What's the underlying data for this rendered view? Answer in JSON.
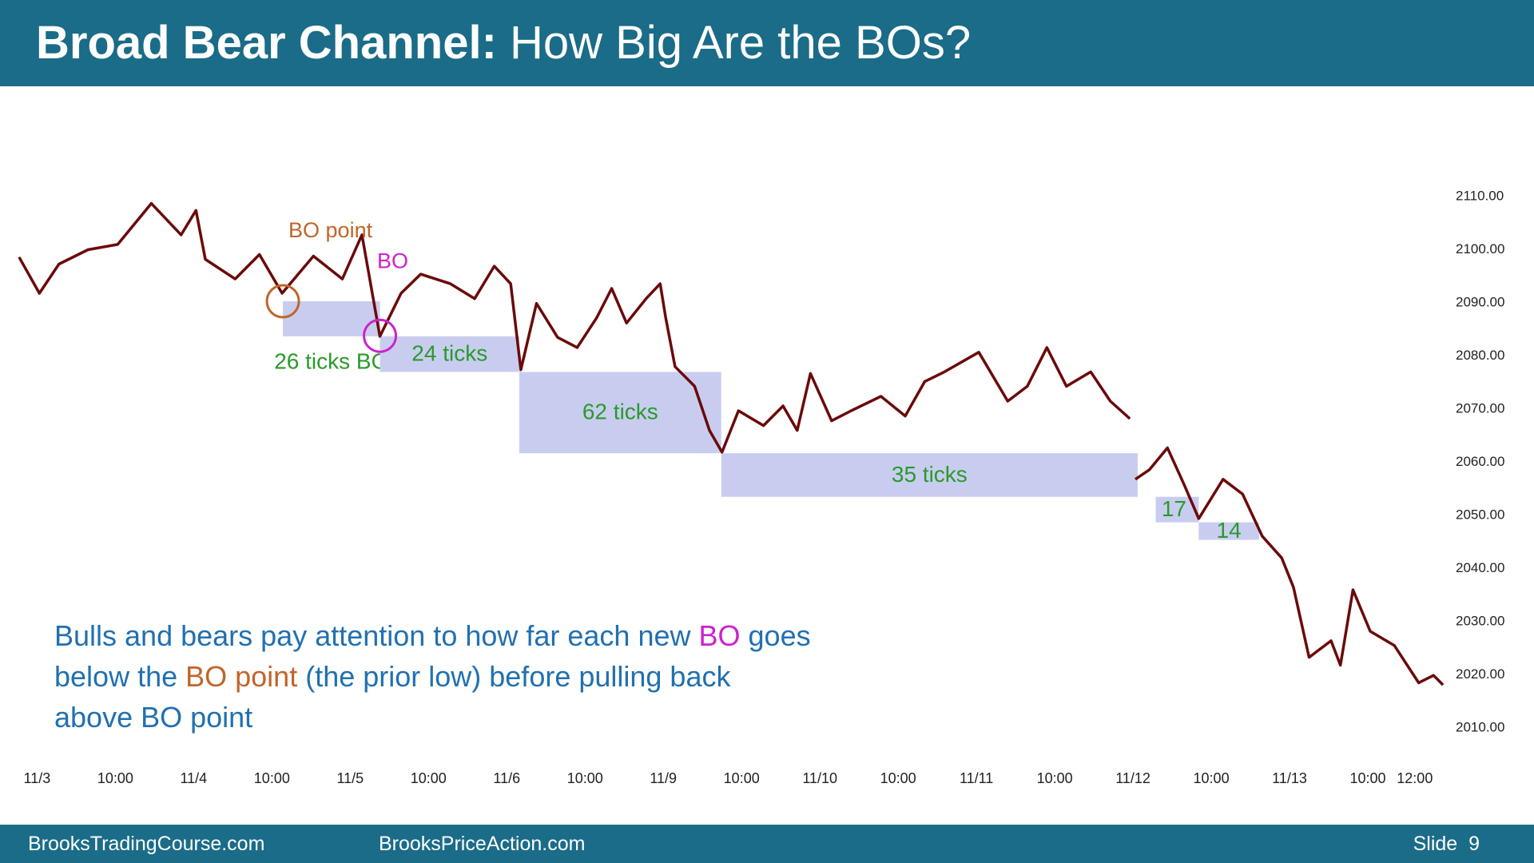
{
  "header": {
    "title_bold": "Broad Bear Channel:",
    "title_rest": "How Big Are the BOs?"
  },
  "chart_data": {
    "type": "line",
    "color": "#6b0a0a",
    "x": [
      -0.23,
      0.03,
      0.28,
      0.65,
      1.03,
      1.46,
      1.84,
      2.03,
      2.15,
      2.53,
      2.84,
      3.13,
      3.53,
      3.9,
      4.15,
      4.38,
      4.65,
      4.9,
      5.28,
      5.59,
      5.84,
      6.05,
      6.18,
      6.38,
      6.65,
      6.9,
      7.15,
      7.34,
      7.53,
      7.78,
      7.96,
      8.03,
      8.15,
      8.4,
      8.59,
      8.75,
      8.96,
      9.28,
      9.53,
      9.71,
      9.88,
      10.15,
      10.4,
      10.78,
      11.09,
      11.34,
      11.59,
      12.03,
      12.4,
      12.65,
      12.9,
      13.15,
      13.46,
      13.71,
      13.96,
      14.0,
      14.03,
      14.21,
      14.44,
      14.65,
      14.84,
      15.15,
      15.4,
      15.65,
      15.9,
      16.05,
      16.25,
      16.53,
      16.65,
      16.81,
      17.03,
      17.34,
      17.65,
      17.84,
      17.96
    ],
    "values": [
      2098.6,
      2091.8,
      2097.3,
      2100.0,
      2101.0,
      2108.7,
      2102.8,
      2107.4,
      2098.2,
      2094.5,
      2099.1,
      2091.8,
      2098.8,
      2094.5,
      2102.8,
      2083.7,
      2091.8,
      2095.4,
      2093.6,
      2090.8,
      2096.9,
      2093.6,
      2077.4,
      2089.9,
      2083.5,
      2081.6,
      2087.2,
      2092.7,
      2086.2,
      2090.8,
      2093.6,
      2087.2,
      2078.0,
      2074.3,
      2066.0,
      2061.9,
      2069.7,
      2066.9,
      2070.6,
      2066.0,
      2076.7,
      2067.8,
      2069.7,
      2072.4,
      2068.7,
      2075.2,
      2077.0,
      2080.7,
      2071.5,
      2074.3,
      2081.6,
      2074.3,
      2077.0,
      2071.5,
      2068.2,
      null,
      2056.8,
      2058.6,
      2062.7,
      2055.9,
      2049.4,
      2056.8,
      2054.0,
      2046.1,
      2042.0,
      2036.5,
      2023.3,
      2026.4,
      2021.8,
      2036.0,
      2028.2,
      2025.5,
      2018.5,
      2019.9,
      2018.1
    ],
    "xlim": [
      -0.3,
      18.0
    ],
    "xticks": [
      {
        "value": 0,
        "label": "11/3"
      },
      {
        "value": 1,
        "label": "10:00"
      },
      {
        "value": 2,
        "label": "11/4"
      },
      {
        "value": 3,
        "label": "10:00"
      },
      {
        "value": 4,
        "label": "11/5"
      },
      {
        "value": 5,
        "label": "10:00"
      },
      {
        "value": 6,
        "label": "11/6"
      },
      {
        "value": 7,
        "label": "10:00"
      },
      {
        "value": 8,
        "label": "11/9"
      },
      {
        "value": 9,
        "label": "10:00"
      },
      {
        "value": 10,
        "label": "11/10"
      },
      {
        "value": 11,
        "label": "10:00"
      },
      {
        "value": 12,
        "label": "11/11"
      },
      {
        "value": 13,
        "label": "10:00"
      },
      {
        "value": 14,
        "label": "11/12"
      },
      {
        "value": 15,
        "label": "10:00"
      },
      {
        "value": 16,
        "label": "11/13"
      },
      {
        "value": 17,
        "label": "10:00"
      },
      {
        "value": 17.6,
        "label": "12:00"
      }
    ],
    "ylim": [
      2010,
      2110
    ],
    "yticks": [
      {
        "value": 2010,
        "label": "2010.00"
      },
      {
        "value": 2020,
        "label": "2020.00"
      },
      {
        "value": 2030,
        "label": "2030.00"
      },
      {
        "value": 2040,
        "label": "2040.00"
      },
      {
        "value": 2050,
        "label": "2050.00"
      },
      {
        "value": 2060,
        "label": "2060.00"
      },
      {
        "value": 2070,
        "label": "2070.00"
      },
      {
        "value": 2080,
        "label": "2080.00"
      },
      {
        "value": 2090,
        "label": "2090.00"
      },
      {
        "value": 2100,
        "label": "2100.00"
      },
      {
        "value": 2110,
        "label": "2110.00"
      }
    ],
    "grid": false,
    "box_color": "#c8cdf0",
    "box_label_color": "#2a9a2a",
    "boxes": [
      {
        "x": [
          3.14,
          4.38
        ],
        "y": [
          2090.3,
          2083.7
        ],
        "label": "26 ticks BO"
      },
      {
        "x": [
          4.38,
          6.16
        ],
        "y": [
          2083.7,
          2077.0
        ],
        "label": "24 ticks"
      },
      {
        "x": [
          6.16,
          8.74
        ],
        "y": [
          2077.0,
          2061.7
        ],
        "label": "62 ticks"
      },
      {
        "x": [
          8.74,
          14.06
        ],
        "y": [
          2061.7,
          2053.5
        ],
        "label": "35 ticks"
      },
      {
        "x": [
          14.29,
          14.84
        ],
        "y": [
          2053.5,
          2048.7
        ],
        "label": "17"
      },
      {
        "x": [
          14.84,
          15.61
        ],
        "y": [
          2048.7,
          2045.4
        ],
        "label": "14"
      }
    ],
    "circles": [
      {
        "x": 3.14,
        "y": 2090.3,
        "label": "BO point",
        "color": "#c0652a"
      },
      {
        "x": 4.38,
        "y": 2083.8,
        "label": "BO",
        "color": "#cc22cc"
      }
    ]
  },
  "note": {
    "lines": [
      [
        {
          "text": "Bulls and bears pay attention to how far each new ",
          "color": "#2170b0"
        },
        {
          "text": "BO",
          "color": "#cc22cc"
        },
        {
          "text": " goes",
          "color": "#2170b0"
        }
      ],
      [
        {
          "text": "below the ",
          "color": "#2170b0"
        },
        {
          "text": "BO point",
          "color": "#c0652a"
        },
        {
          "text": " (the prior low) before pulling back",
          "color": "#2170b0"
        }
      ],
      [
        {
          "text": "above BO point",
          "color": "#2170b0"
        }
      ]
    ]
  },
  "footer": {
    "left": "BrooksTradingCourse.com",
    "center": "BrooksPriceAction.com",
    "right": "Slide  9"
  }
}
